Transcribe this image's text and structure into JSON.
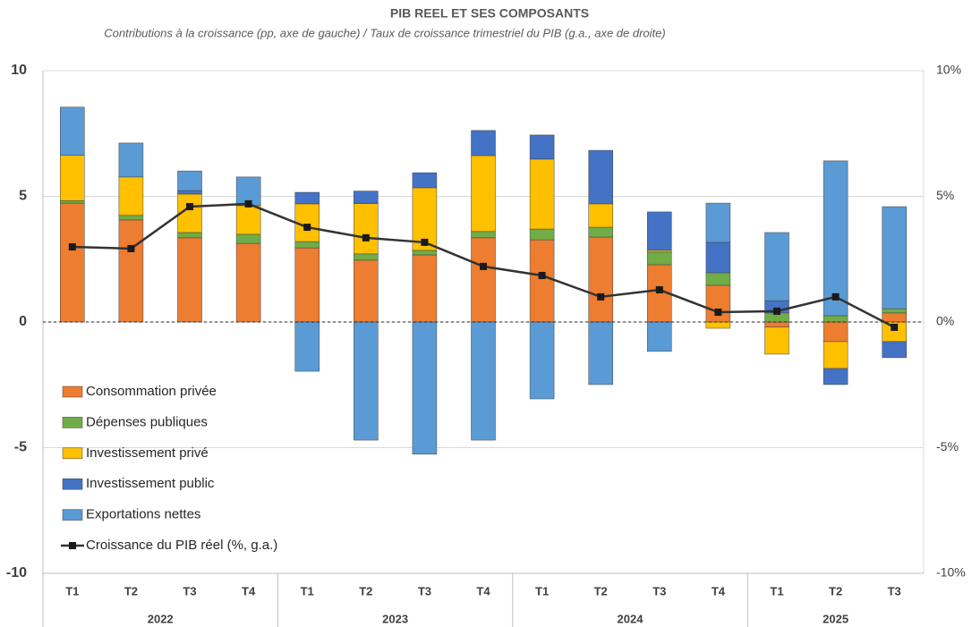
{
  "chart_data": {
    "type": "stacked_bar_line",
    "title": "PIB REEL ET SES COMPOSANTS",
    "subtitle": "Contributions à la croissance (pp, axe de gauche) / Taux de croissance trimestriel du PIB (g.a., axe de droite)",
    "categories": [
      "T1",
      "T2",
      "T3",
      "T4",
      "T1",
      "T2",
      "T3",
      "T4",
      "T1",
      "T2",
      "T3",
      "T4",
      "T1",
      "T2",
      "T3"
    ],
    "groups": [
      {
        "label": "2022",
        "count": 4
      },
      {
        "label": "2023",
        "count": 4
      },
      {
        "label": "2024",
        "count": 4
      },
      {
        "label": "2025",
        "count": 3
      }
    ],
    "series": [
      {
        "name": "Consommation privée",
        "color": "#ED7D31",
        "values": [
          4.73,
          4.06,
          3.35,
          3.13,
          2.95,
          2.46,
          2.67,
          3.35,
          3.27,
          3.38,
          2.28,
          1.46,
          -0.2,
          -0.78,
          0.36
        ]
      },
      {
        "name": "Dépenses publiques",
        "color": "#70AD47",
        "values": [
          0.1,
          0.18,
          0.21,
          0.36,
          0.25,
          0.25,
          0.18,
          0.25,
          0.43,
          0.39,
          0.5,
          0.5,
          0.36,
          0.25,
          0.17
        ]
      },
      {
        "name": "Investissement privé",
        "color": "#FFC000",
        "values": [
          1.8,
          1.53,
          1.53,
          1.14,
          1.5,
          2.0,
          2.49,
          3.02,
          2.78,
          0.93,
          0.07,
          -0.25,
          -1.08,
          -1.07,
          -0.78
        ]
      },
      {
        "name": "Investissement public",
        "color": "#4472C4",
        "values": [
          0,
          0,
          0.14,
          0,
          0.46,
          0.5,
          0.6,
          1.0,
          0.96,
          2.13,
          1.53,
          1.21,
          0.49,
          -0.64,
          -0.64
        ]
      },
      {
        "name": "Exportations nettes",
        "color": "#5B9BD5",
        "values": [
          1.92,
          1.35,
          0.78,
          1.14,
          -1.96,
          -4.7,
          -5.26,
          -4.7,
          -3.06,
          -2.49,
          -1.17,
          1.56,
          2.71,
          6.16,
          4.06
        ]
      },
      {
        "name": "Croissance du PIB réel (%, g.a.)",
        "color": "#333333",
        "axis": "y2",
        "kind": "line",
        "values": [
          2.99,
          2.92,
          4.59,
          4.7,
          3.77,
          3.35,
          3.17,
          2.21,
          1.85,
          1.0,
          1.28,
          0.39,
          0.43,
          1.0,
          -0.21
        ]
      }
    ],
    "ylim": [
      -10,
      10
    ],
    "yticks": [
      -10,
      -5,
      0,
      5,
      10
    ],
    "y2lim": [
      -10,
      10
    ],
    "y2ticks": [
      {
        "value": -10,
        "label": "-10%"
      },
      {
        "value": -5,
        "label": "-5%"
      },
      {
        "value": 0,
        "label": "0%"
      },
      {
        "value": 5,
        "label": "5%"
      },
      {
        "value": 10,
        "label": "10%"
      }
    ],
    "grid": true,
    "legend": "lower-left"
  }
}
